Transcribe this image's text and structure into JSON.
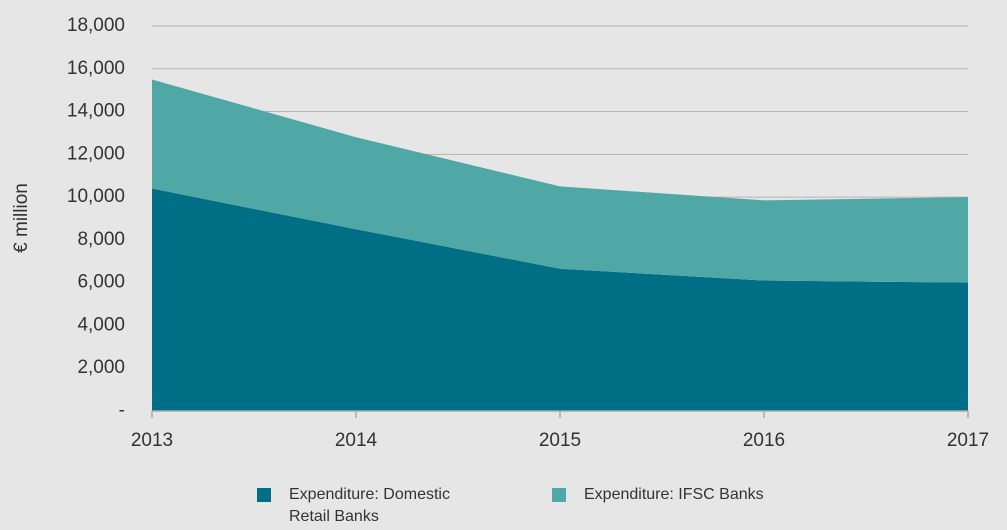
{
  "chart_data": {
    "type": "stacked_area",
    "ylabel": "€ million",
    "categories": [
      "2013",
      "2014",
      "2015",
      "2016",
      "2017"
    ],
    "series": [
      {
        "name": "Expenditure: Domestic Retail Banks",
        "color": "#006e85",
        "values": [
          10400,
          8500,
          6650,
          6100,
          6000
        ]
      },
      {
        "name": "Expenditure: IFSC Banks",
        "color": "#4fa8a6",
        "values": [
          5100,
          4300,
          3850,
          3750,
          4000
        ]
      }
    ],
    "ylim": [
      0,
      18000
    ],
    "yticks": [
      {
        "value": 0,
        "label": "-"
      },
      {
        "value": 2000,
        "label": "2,000"
      },
      {
        "value": 4000,
        "label": "4,000"
      },
      {
        "value": 6000,
        "label": "6,000"
      },
      {
        "value": 8000,
        "label": "8,000"
      },
      {
        "value": 10000,
        "label": "10,000"
      },
      {
        "value": 12000,
        "label": "12,000"
      },
      {
        "value": 14000,
        "label": "14,000"
      },
      {
        "value": 16000,
        "label": "16,000"
      },
      {
        "value": 18000,
        "label": "18,000"
      }
    ],
    "grid": true
  }
}
